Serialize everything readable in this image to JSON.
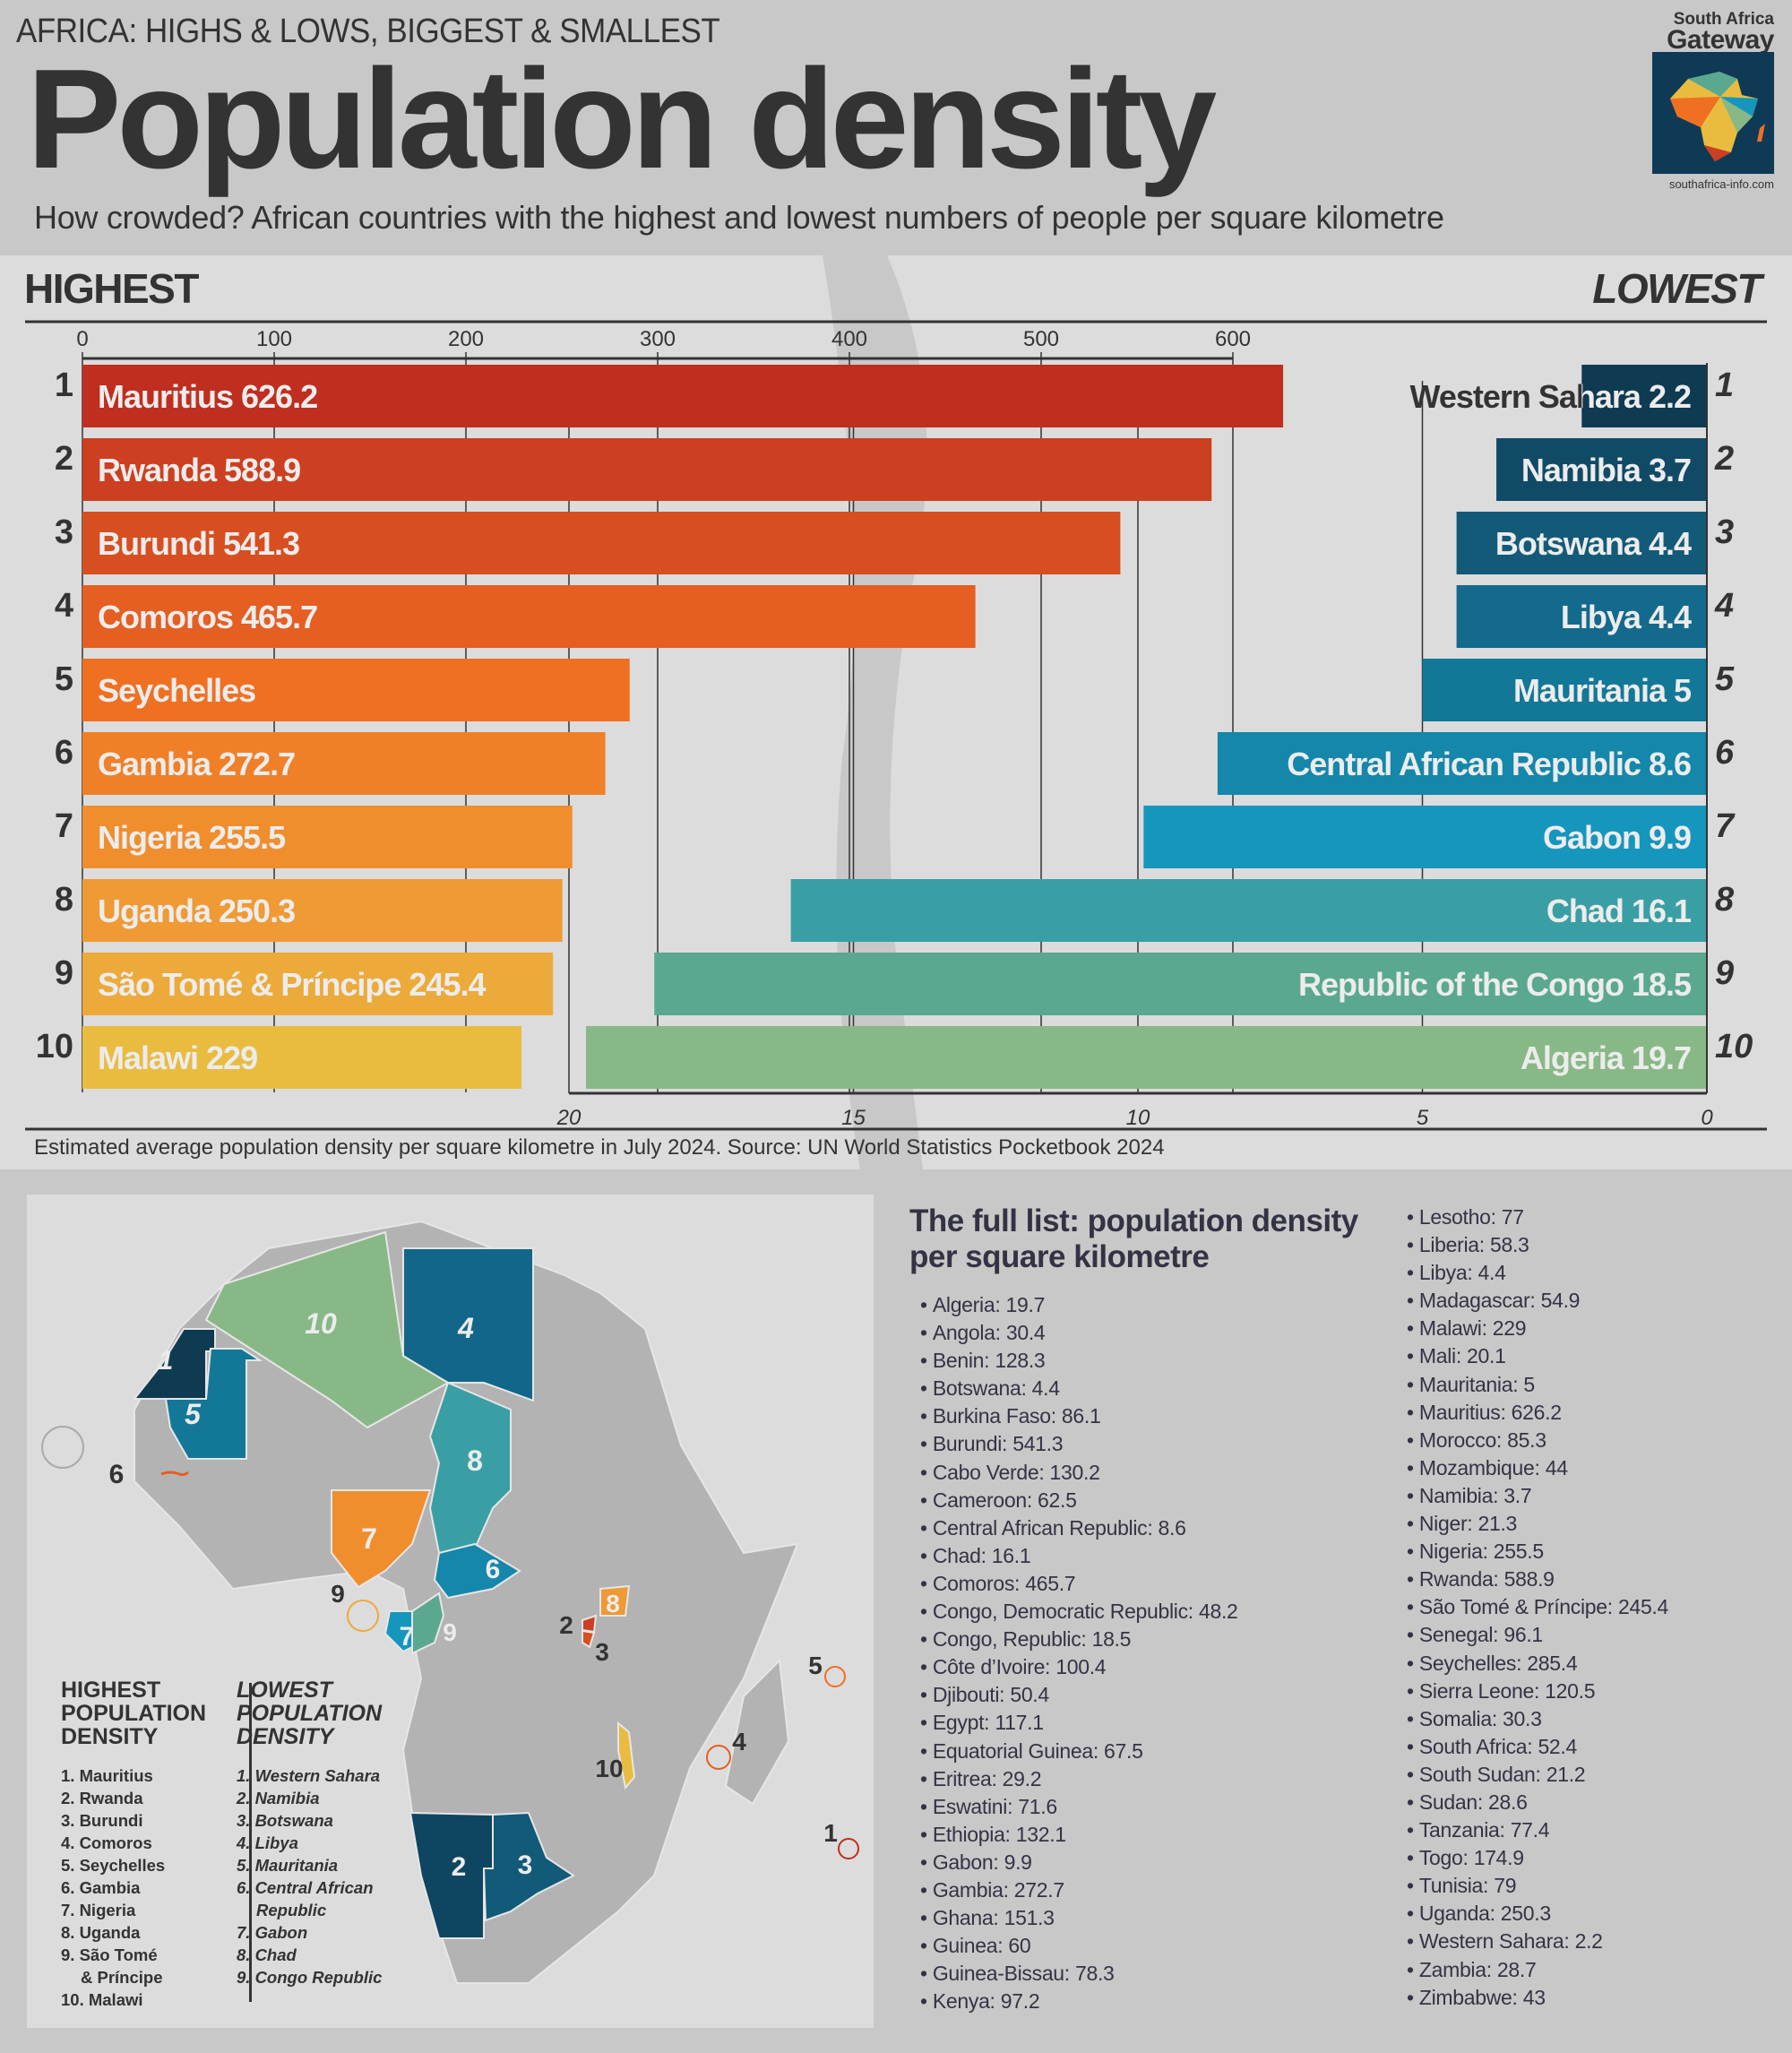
{
  "header": {
    "kicker": "AFRICA: HIGHS & LOWS, BIGGEST & SMALLEST",
    "title": "Population density",
    "subtitle": "How crowded? African countries with the highest and lowest numbers of people per square kilometre"
  },
  "logo": {
    "line1": "South Africa",
    "line2": "Gateway",
    "url": "southafrica-info.com",
    "icon": "africa-map-logo-icon"
  },
  "chart_data": [
    {
      "type": "bar",
      "orientation": "horizontal",
      "title": "HIGHEST",
      "xlim": [
        0,
        626.2
      ],
      "ticks": [
        0,
        100,
        200,
        300,
        400,
        500,
        600
      ],
      "tick_position": "top",
      "grid": true,
      "ranks": [
        "1",
        "2",
        "3",
        "4",
        "5",
        "6",
        "7",
        "8",
        "9",
        "10"
      ],
      "categories": [
        "Mauritius",
        "Rwanda",
        "Burundi",
        "Comoros",
        "Seychelles",
        "Gambia",
        "Nigeria",
        "Uganda",
        "São Tomé & Príncipe",
        "Malawi"
      ],
      "values": [
        626.2,
        588.9,
        541.3,
        465.7,
        285.4,
        272.7,
        255.5,
        250.3,
        245.4,
        229
      ],
      "labels": [
        "Mauritius 626.2",
        "Rwanda 588.9",
        "Burundi 541.3",
        "Comoros 465.7",
        "Seychelles",
        "Gambia 272.7",
        "Nigeria 255.5",
        "Uganda 250.3",
        "São Tomé & Príncipe 245.4",
        "Malawi 229"
      ],
      "colors": [
        "#bf2e1f",
        "#cc3f20",
        "#d74e20",
        "#e55e22",
        "#f07022",
        "#f08028",
        "#f08e2e",
        "#ef9a34",
        "#ecaa3a",
        "#e9bc40"
      ]
    },
    {
      "type": "bar",
      "orientation": "horizontal-reversed",
      "title": "LOWEST",
      "xlim": [
        0,
        20
      ],
      "ticks": [
        20,
        15,
        10,
        5,
        0
      ],
      "tick_position": "bottom",
      "grid": true,
      "ranks": [
        "1",
        "2",
        "3",
        "4",
        "5",
        "6",
        "7",
        "8",
        "9",
        "10"
      ],
      "categories": [
        "Western Sahara",
        "Namibia",
        "Botswana",
        "Libya",
        "Mauritania",
        "Central African Republic",
        "Gabon",
        "Chad",
        "Republic of the Congo",
        "Algeria"
      ],
      "values": [
        2.2,
        3.7,
        4.4,
        4.4,
        5,
        8.6,
        9.9,
        16.1,
        18.5,
        19.7
      ],
      "labels": [
        "Western Sahara 2.2",
        "Namibia 3.7",
        "Botswana 4.4",
        "Libya 4.4",
        "Mauritania 5",
        "Central African Republic 8.6",
        "Gabon 9.9",
        "Chad 16.1",
        "Republic of the Congo 18.5",
        "Algeria 19.7"
      ],
      "colors": [
        "#0e3a52",
        "#114a66",
        "#135a78",
        "#146a8c",
        "#137898",
        "#1487aa",
        "#1596bd",
        "#399fa4",
        "#5aa890",
        "#88b886"
      ]
    }
  ],
  "chart_footnote": "Estimated average population density per square kilometre in July 2024. Source: UN World Statistics Pocketbook 2024",
  "map": {
    "label": "Map of Africa with highest and lowest density countries highlighted",
    "highest_heading": [
      "HIGHEST",
      "POPULATION",
      "DENSITY"
    ],
    "highest_list": [
      {
        "text": "1. Mauritius"
      },
      {
        "text": "2. Rwanda"
      },
      {
        "text": "3. Burundi"
      },
      {
        "text": "4. Comoros"
      },
      {
        "text": "5. Seychelles"
      },
      {
        "text": "6. Gambia"
      },
      {
        "text": "7. Nigeria"
      },
      {
        "text": "8. Uganda"
      },
      {
        "text": "9. São Tomé"
      },
      {
        "text": "& Príncipe",
        "indent": true
      },
      {
        "text": "10. Malawi"
      }
    ],
    "lowest_heading": [
      "LOWEST",
      "POPULATION",
      "DENSITY"
    ],
    "lowest_list": [
      {
        "text": "1. Western Sahara"
      },
      {
        "text": "2. Namibia"
      },
      {
        "text": "3. Botswana"
      },
      {
        "text": "4. Libya"
      },
      {
        "text": "5. Mauritania"
      },
      {
        "text": "6. Central African"
      },
      {
        "text": "Republic",
        "indent": true
      },
      {
        "text": "7. Gabon"
      },
      {
        "text": "8. Chad"
      },
      {
        "text": "9. Congo Republic"
      }
    ],
    "region_labels": {
      "western_sahara": "1",
      "mauritania": "5",
      "algeria": "10",
      "libya": "4",
      "chad": "8",
      "nigeria": "7",
      "car": "6",
      "gabon": "7",
      "congo": "9",
      "uganda": "8",
      "namibia": "2",
      "botswana": "3",
      "gambia": "6",
      "sao_tome": "9",
      "rwanda": "2",
      "burundi": "3",
      "malawi": "10",
      "seychelles": "5",
      "comoros": "4",
      "mauritius": "1"
    }
  },
  "full_list": {
    "title": "The full list: population density per square kilometre",
    "column1": [
      "Algeria: 19.7",
      "Angola: 30.4",
      "Benin: 128.3",
      "Botswana: 4.4",
      "Burkina Faso: 86.1",
      "Burundi: 541.3",
      "Cabo Verde: 130.2",
      "Cameroon: 62.5",
      "Central African Republic: 8.6",
      "Chad: 16.1",
      "Comoros: 465.7",
      "Congo, Democratic Republic: 48.2",
      "Congo, Republic: 18.5",
      "Côte d’Ivoire: 100.4",
      "Djibouti: 50.4",
      "Egypt: 117.1",
      "Equatorial Guinea: 67.5",
      "Eritrea: 29.2",
      "Eswatini: 71.6",
      "Ethiopia: 132.1",
      "Gabon: 9.9",
      "Gambia: 272.7",
      "Ghana: 151.3",
      "Guinea: 60",
      "Guinea-Bissau: 78.3",
      "Kenya: 97.2"
    ],
    "column2": [
      "Lesotho: 77",
      "Liberia: 58.3",
      "Libya: 4.4",
      "Madagascar: 54.9",
      "Malawi: 229",
      "Mali: 20.1",
      "Mauritania: 5",
      "Mauritius: 626.2",
      "Morocco: 85.3",
      "Mozambique: 44",
      "Namibia: 3.7",
      "Niger: 21.3",
      "Nigeria: 255.5",
      "Rwanda: 588.9",
      "São Tomé & Príncipe: 245.4",
      "Senegal: 96.1",
      "Seychelles: 285.4",
      "Sierra Leone: 120.5",
      "Somalia: 30.3",
      "South Africa: 52.4",
      "South Sudan: 21.2",
      "Sudan: 28.6",
      "Tanzania: 77.4",
      "Togo: 174.9",
      "Tunisia: 79",
      "Uganda: 250.3",
      "Western Sahara: 2.2",
      "Zambia: 28.7",
      "Zimbabwe: 43"
    ]
  }
}
